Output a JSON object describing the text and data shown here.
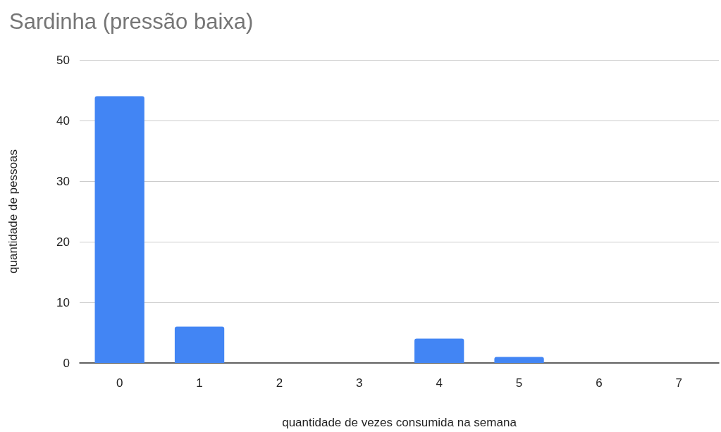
{
  "chart_data": {
    "type": "bar",
    "title": "Sardinha (pressão baixa)",
    "xlabel": "quantidade de vezes consumida na semana",
    "ylabel": "quantidade de pessoas",
    "categories": [
      "0",
      "1",
      "2",
      "3",
      "4",
      "5",
      "6",
      "7"
    ],
    "values": [
      44,
      6,
      0,
      0,
      4,
      1,
      0,
      0
    ],
    "color": "#4285f4",
    "ylim": [
      0,
      50
    ],
    "yticks": [
      0,
      10,
      20,
      30,
      40,
      50
    ],
    "grid": "y"
  }
}
